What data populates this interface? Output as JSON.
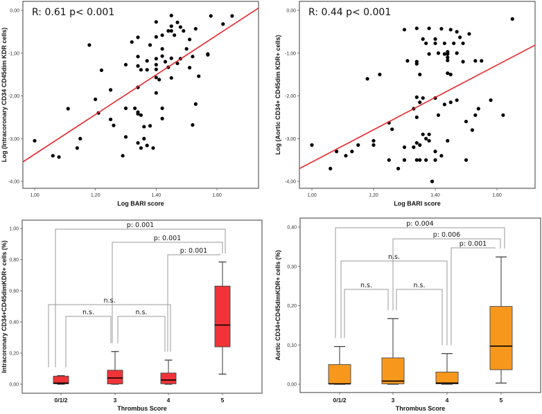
{
  "chart_data": [
    {
      "type": "scatter",
      "panel": "top-left",
      "annotation": "R: 0.61 p< 0.001",
      "xlabel": "Log BARI score",
      "ylabel": "Log (Intracoronary CD34 CD45dim KDR cells)",
      "xlim": [
        0.96,
        1.74
      ],
      "ylim": [
        -4.2,
        0.2
      ],
      "xticks": [
        1.0,
        1.2,
        1.4,
        1.6
      ],
      "xtick_labels": [
        "1,00",
        "1,20",
        "1,40",
        "1,60"
      ],
      "yticks": [
        0.0,
        -1.0,
        -2.0,
        -3.0,
        -4.0
      ],
      "ytick_labels": [
        "0,00",
        "-1,00",
        "-2,00",
        "-3,00",
        "-4,00"
      ],
      "fit_line": {
        "x": [
          0.96,
          1.74
        ],
        "y": [
          -3.55,
          0.07
        ],
        "color": "#e8262b"
      },
      "points": [
        [
          1.0,
          -3.05
        ],
        [
          1.06,
          -3.4
        ],
        [
          1.08,
          -3.43
        ],
        [
          1.11,
          -2.3
        ],
        [
          1.14,
          -3.22
        ],
        [
          1.15,
          -3.0
        ],
        [
          1.18,
          -0.81
        ],
        [
          1.2,
          -2.08
        ],
        [
          1.21,
          -2.4
        ],
        [
          1.22,
          -1.4
        ],
        [
          1.25,
          -1.86
        ],
        [
          1.25,
          -2.55
        ],
        [
          1.26,
          -2.69
        ],
        [
          1.29,
          -3.4
        ],
        [
          1.3,
          -1.27
        ],
        [
          1.3,
          -2.29
        ],
        [
          1.3,
          -2.96
        ],
        [
          1.32,
          -0.74
        ],
        [
          1.33,
          -2.29
        ],
        [
          1.34,
          -0.63
        ],
        [
          1.34,
          -1.08
        ],
        [
          1.34,
          -1.3
        ],
        [
          1.34,
          -1.8
        ],
        [
          1.34,
          -2.38
        ],
        [
          1.34,
          -2.42
        ],
        [
          1.34,
          -3.1
        ],
        [
          1.35,
          -1.39
        ],
        [
          1.35,
          -3.22
        ],
        [
          1.35,
          -2.45
        ],
        [
          1.36,
          -3.0
        ],
        [
          1.36,
          -2.72
        ],
        [
          1.37,
          -1.18
        ],
        [
          1.37,
          -1.39
        ],
        [
          1.37,
          -3.16
        ],
        [
          1.38,
          -0.81
        ],
        [
          1.38,
          -2.7
        ],
        [
          1.39,
          -3.22
        ],
        [
          1.4,
          -0.62
        ],
        [
          1.4,
          -1.13
        ],
        [
          1.4,
          -1.27
        ],
        [
          1.4,
          -1.38
        ],
        [
          1.4,
          -1.57
        ],
        [
          1.4,
          -1.93
        ],
        [
          1.4,
          -0.27
        ],
        [
          1.41,
          -1.62
        ],
        [
          1.42,
          -0.9
        ],
        [
          1.42,
          -1.07
        ],
        [
          1.42,
          -2.29
        ],
        [
          1.42,
          -2.53
        ],
        [
          1.42,
          -0.58
        ],
        [
          1.43,
          -1.2
        ],
        [
          1.44,
          -0.48
        ],
        [
          1.44,
          -1.33
        ],
        [
          1.45,
          -0.48
        ],
        [
          1.45,
          -0.12
        ],
        [
          1.45,
          -0.37
        ],
        [
          1.45,
          -1.12
        ],
        [
          1.45,
          -1.58
        ],
        [
          1.46,
          -0.58
        ],
        [
          1.47,
          -0.28
        ],
        [
          1.47,
          -1.24
        ],
        [
          1.48,
          -0.39
        ],
        [
          1.48,
          -1.13
        ],
        [
          1.49,
          -0.48
        ],
        [
          1.5,
          -0.9
        ],
        [
          1.51,
          -1.34
        ],
        [
          1.51,
          -0.68
        ],
        [
          1.52,
          -1.08
        ],
        [
          1.53,
          -0.43
        ],
        [
          1.54,
          -1.54
        ],
        [
          1.52,
          -2.68
        ],
        [
          1.53,
          -2.19
        ],
        [
          1.57,
          -1.02
        ],
        [
          1.57,
          -1.04
        ],
        [
          1.58,
          -0.13
        ],
        [
          1.62,
          -0.32
        ],
        [
          1.65,
          -0.13
        ]
      ]
    },
    {
      "type": "scatter",
      "panel": "top-right",
      "annotation": "R: 0.44 p< 0.001",
      "xlabel": "Log BARI score",
      "ylabel": "Log (Aortic CD34+ CD45dim KDR+ cells)",
      "xlim": [
        0.96,
        1.74
      ],
      "ylim": [
        -4.2,
        0.2
      ],
      "xticks": [
        1.0,
        1.2,
        1.4,
        1.6
      ],
      "xtick_labels": [
        "1,00",
        "1,20",
        "1,40",
        "1,60"
      ],
      "yticks": [
        0.0,
        -1.0,
        -2.0,
        -3.0,
        -4.0
      ],
      "ytick_labels": [
        "0,00",
        "-1,00",
        "-2,00",
        "-3,00",
        "-4,00"
      ],
      "fit_line": {
        "x": [
          0.96,
          1.74
        ],
        "y": [
          -3.7,
          -0.75
        ],
        "color": "#e8262b"
      },
      "points": [
        [
          1.0,
          -3.15
        ],
        [
          1.06,
          -3.7
        ],
        [
          1.08,
          -3.3
        ],
        [
          1.11,
          -3.4
        ],
        [
          1.13,
          -3.3
        ],
        [
          1.15,
          -3.15
        ],
        [
          1.18,
          -1.6
        ],
        [
          1.2,
          -3.05
        ],
        [
          1.2,
          -3.15
        ],
        [
          1.22,
          -1.5
        ],
        [
          1.25,
          -2.63
        ],
        [
          1.25,
          -3.5
        ],
        [
          1.26,
          -2.78
        ],
        [
          1.28,
          -3.7
        ],
        [
          1.3,
          -0.45
        ],
        [
          1.3,
          -3.2
        ],
        [
          1.3,
          -3.5
        ],
        [
          1.31,
          -1.18
        ],
        [
          1.33,
          -2.3
        ],
        [
          1.33,
          -3.2
        ],
        [
          1.34,
          -0.42
        ],
        [
          1.34,
          -1.2
        ],
        [
          1.34,
          -1.25
        ],
        [
          1.34,
          -2.03
        ],
        [
          1.34,
          -2.5
        ],
        [
          1.34,
          -3.1
        ],
        [
          1.34,
          -3.5
        ],
        [
          1.35,
          -1.5
        ],
        [
          1.35,
          -3.5
        ],
        [
          1.35,
          -2.15
        ],
        [
          1.35,
          -3.15
        ],
        [
          1.36,
          -2.9
        ],
        [
          1.36,
          -0.67
        ],
        [
          1.36,
          -2.05
        ],
        [
          1.37,
          -0.77
        ],
        [
          1.37,
          -3.0
        ],
        [
          1.37,
          -3.5
        ],
        [
          1.38,
          -0.42
        ],
        [
          1.38,
          -1.02
        ],
        [
          1.38,
          -2.9
        ],
        [
          1.38,
          -3.05
        ],
        [
          1.39,
          -4.0
        ],
        [
          1.4,
          -0.67
        ],
        [
          1.4,
          -3.3
        ],
        [
          1.4,
          -3.5
        ],
        [
          1.4,
          -0.77
        ],
        [
          1.4,
          -2.05
        ],
        [
          1.41,
          -1.0
        ],
        [
          1.41,
          -2.45
        ],
        [
          1.42,
          -0.43
        ],
        [
          1.42,
          -3.4
        ],
        [
          1.43,
          -0.77
        ],
        [
          1.43,
          -1.02
        ],
        [
          1.43,
          -2.2
        ],
        [
          1.44,
          -0.97
        ],
        [
          1.44,
          -1.02
        ],
        [
          1.44,
          -1.1
        ],
        [
          1.44,
          -1.17
        ],
        [
          1.44,
          -1.47
        ],
        [
          1.44,
          -3.05
        ],
        [
          1.45,
          -1.5
        ],
        [
          1.45,
          -2.15
        ],
        [
          1.45,
          -0.45
        ],
        [
          1.46,
          -0.77
        ],
        [
          1.47,
          -2.1
        ],
        [
          1.47,
          -1.0
        ],
        [
          1.47,
          -0.5
        ],
        [
          1.48,
          -0.63
        ],
        [
          1.49,
          -1.2
        ],
        [
          1.49,
          -0.77
        ],
        [
          1.5,
          -2.6
        ],
        [
          1.5,
          -3.5
        ],
        [
          1.51,
          -0.55
        ],
        [
          1.52,
          -2.8
        ],
        [
          1.53,
          -1.18
        ],
        [
          1.53,
          -2.45
        ],
        [
          1.54,
          -2.3
        ],
        [
          1.55,
          -1.18
        ],
        [
          1.58,
          -2.1
        ],
        [
          1.62,
          -2.45
        ],
        [
          1.65,
          -0.2
        ]
      ]
    },
    {
      "type": "box",
      "panel": "bottom-left",
      "xlabel": "Thrombus Score",
      "ylabel": "Intracoronary CD34+CD45dimKDR+ cells (%)",
      "categories": [
        "0/1/2",
        "3",
        "4",
        "5"
      ],
      "ylim": [
        -0.05,
        1.05
      ],
      "yticks": [
        0.0,
        0.2,
        0.4,
        0.6,
        0.8,
        1.0
      ],
      "ytick_labels": [
        "0,00",
        "0,20",
        "0,40",
        "0,60",
        "0,80",
        "1,00"
      ],
      "box_color": "#ef3338",
      "boxes": [
        {
          "min": 0.0,
          "q1": 0.003,
          "median": 0.007,
          "q3": 0.052,
          "max": 0.055
        },
        {
          "min": 0.0,
          "q1": 0.002,
          "median": 0.04,
          "q3": 0.09,
          "max": 0.21
        },
        {
          "min": 0.0,
          "q1": 0.003,
          "median": 0.027,
          "q3": 0.072,
          "max": 0.155
        },
        {
          "min": 0.065,
          "q1": 0.24,
          "median": 0.38,
          "q3": 0.63,
          "max": 0.785
        }
      ],
      "comparisons": [
        {
          "from": 0,
          "to": 3,
          "label": "p: 0.001"
        },
        {
          "from": 1,
          "to": 3,
          "label": "p: 0.001"
        },
        {
          "from": 2,
          "to": 3,
          "label": "p: 0.001"
        },
        {
          "from": 0,
          "to": 2,
          "label": "n.s."
        },
        {
          "from": 0,
          "to": 1,
          "label": "n.s."
        },
        {
          "from": 1,
          "to": 2,
          "label": "n.s."
        }
      ]
    },
    {
      "type": "box",
      "panel": "bottom-right",
      "xlabel": "Thrombus Score",
      "ylabel": "Aortic CD34+CD45dimKDR+ cells (%)",
      "categories": [
        "0/1/2",
        "3",
        "4",
        "5"
      ],
      "ylim": [
        -0.022,
        0.423
      ],
      "yticks": [
        0.0,
        0.1,
        0.2,
        0.3,
        0.4
      ],
      "ytick_labels": [
        "0,00",
        "0,10",
        "0,20",
        "0,30",
        "0,40"
      ],
      "box_color": "#f7981d",
      "boxes": [
        {
          "min": 0.0,
          "q1": 0.001,
          "median": 0.001,
          "q3": 0.05,
          "max": 0.096
        },
        {
          "min": 0.0,
          "q1": 0.001,
          "median": 0.008,
          "q3": 0.067,
          "max": 0.167
        },
        {
          "min": 0.0,
          "q1": 0.001,
          "median": 0.003,
          "q3": 0.031,
          "max": 0.078
        },
        {
          "min": 0.003,
          "q1": 0.037,
          "median": 0.097,
          "q3": 0.198,
          "max": 0.324
        }
      ],
      "comparisons": [
        {
          "from": 0,
          "to": 3,
          "label": "p: 0.004"
        },
        {
          "from": 1,
          "to": 3,
          "label": "p: 0.006"
        },
        {
          "from": 2,
          "to": 3,
          "label": "p: 0.001"
        },
        {
          "from": 0,
          "to": 2,
          "label": "n.s."
        },
        {
          "from": 0,
          "to": 1,
          "label": "n.s."
        },
        {
          "from": 1,
          "to": 2,
          "label": "n.s."
        }
      ]
    }
  ]
}
